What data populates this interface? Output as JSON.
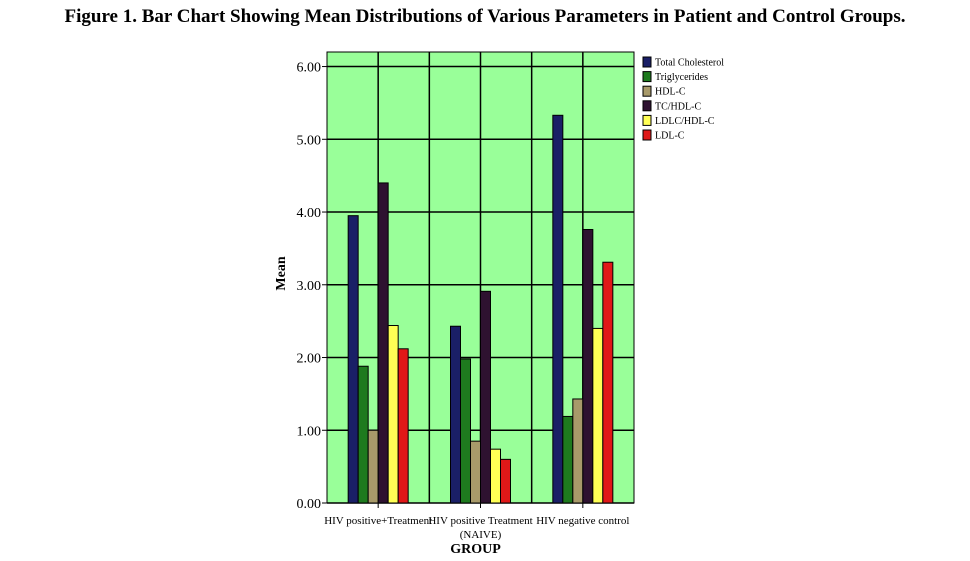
{
  "title": "Figure 1. Bar Chart Showing Mean Distributions of Various Parameters in Patient and Control Groups.",
  "chart_data": {
    "type": "bar",
    "xlabel": "GROUP",
    "ylabel": "Mean",
    "ylim": [
      0,
      6.2
    ],
    "yticks": [
      "0.00",
      "1.00",
      "2.00",
      "3.00",
      "4.00",
      "5.00",
      "6.00"
    ],
    "grid": true,
    "legend_position": "right",
    "plot_background": "#99ff99",
    "categories": [
      [
        "HIV positive+Treatment"
      ],
      [
        "HIV positive Treatment",
        "(NAIVE)"
      ],
      [
        "HIV negative control"
      ]
    ],
    "series": [
      {
        "name": "Total Cholesterol",
        "color": "#1a1f66",
        "values": [
          3.95,
          2.43,
          5.33
        ]
      },
      {
        "name": "Triglycerides",
        "color": "#1e7a1e",
        "values": [
          1.88,
          1.98,
          1.19
        ]
      },
      {
        "name": "HDL-C",
        "color": "#a89a6a",
        "values": [
          1.0,
          0.85,
          1.43
        ]
      },
      {
        "name": "TC/HDL-C",
        "color": "#2e1230",
        "values": [
          4.4,
          2.91,
          3.76
        ]
      },
      {
        "name": "LDLC/HDL-C",
        "color": "#ffff55",
        "values": [
          2.44,
          0.74,
          2.4
        ]
      },
      {
        "name": "LDL-C",
        "color": "#e01818",
        "values": [
          2.12,
          0.6,
          3.31
        ]
      }
    ]
  }
}
